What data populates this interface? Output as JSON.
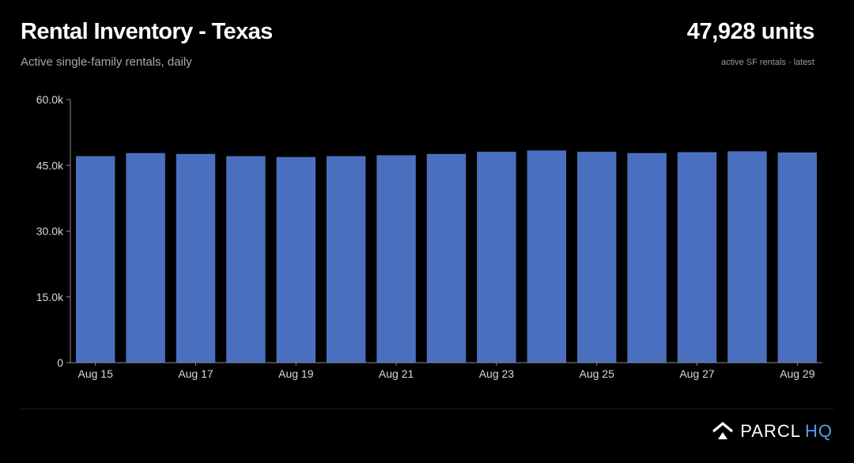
{
  "header": {
    "title": "Rental Inventory - Texas",
    "subtitle": "Active single-family rentals, daily"
  },
  "kpi": {
    "value": "47,928 units",
    "caption": "active SF rentals · latest"
  },
  "brand": {
    "name": "PARCL",
    "accent": "HQ",
    "icon": "house-logo-icon",
    "accent_color": "#5b9bf0"
  },
  "colors": {
    "background": "#000000",
    "bar": "#4a6fbf",
    "axis": "#8a8a8a",
    "tick_text": "#d8d8d8"
  },
  "chart_data": {
    "type": "bar",
    "title": "Rental Inventory - Texas",
    "subtitle": "Active single-family rentals, daily",
    "xlabel": "",
    "ylabel": "",
    "categories": [
      "Aug 15",
      "Aug 16",
      "Aug 17",
      "Aug 18",
      "Aug 19",
      "Aug 20",
      "Aug 21",
      "Aug 22",
      "Aug 23",
      "Aug 24",
      "Aug 25",
      "Aug 26",
      "Aug 27",
      "Aug 28",
      "Aug 29"
    ],
    "x_tick_labels": [
      "Aug 15",
      "Aug 17",
      "Aug 19",
      "Aug 21",
      "Aug 23",
      "Aug 25",
      "Aug 27",
      "Aug 29"
    ],
    "values": [
      47100,
      47800,
      47600,
      47100,
      46900,
      47100,
      47300,
      47600,
      48100,
      48400,
      48100,
      47800,
      48000,
      48200,
      47928
    ],
    "ylim": [
      0,
      60000
    ],
    "y_ticks": [
      0,
      15000,
      30000,
      45000,
      60000
    ],
    "y_tick_labels": [
      "0",
      "15.0k",
      "30.0k",
      "45.0k",
      "60.0k"
    ],
    "grid": false,
    "legend": "none"
  }
}
